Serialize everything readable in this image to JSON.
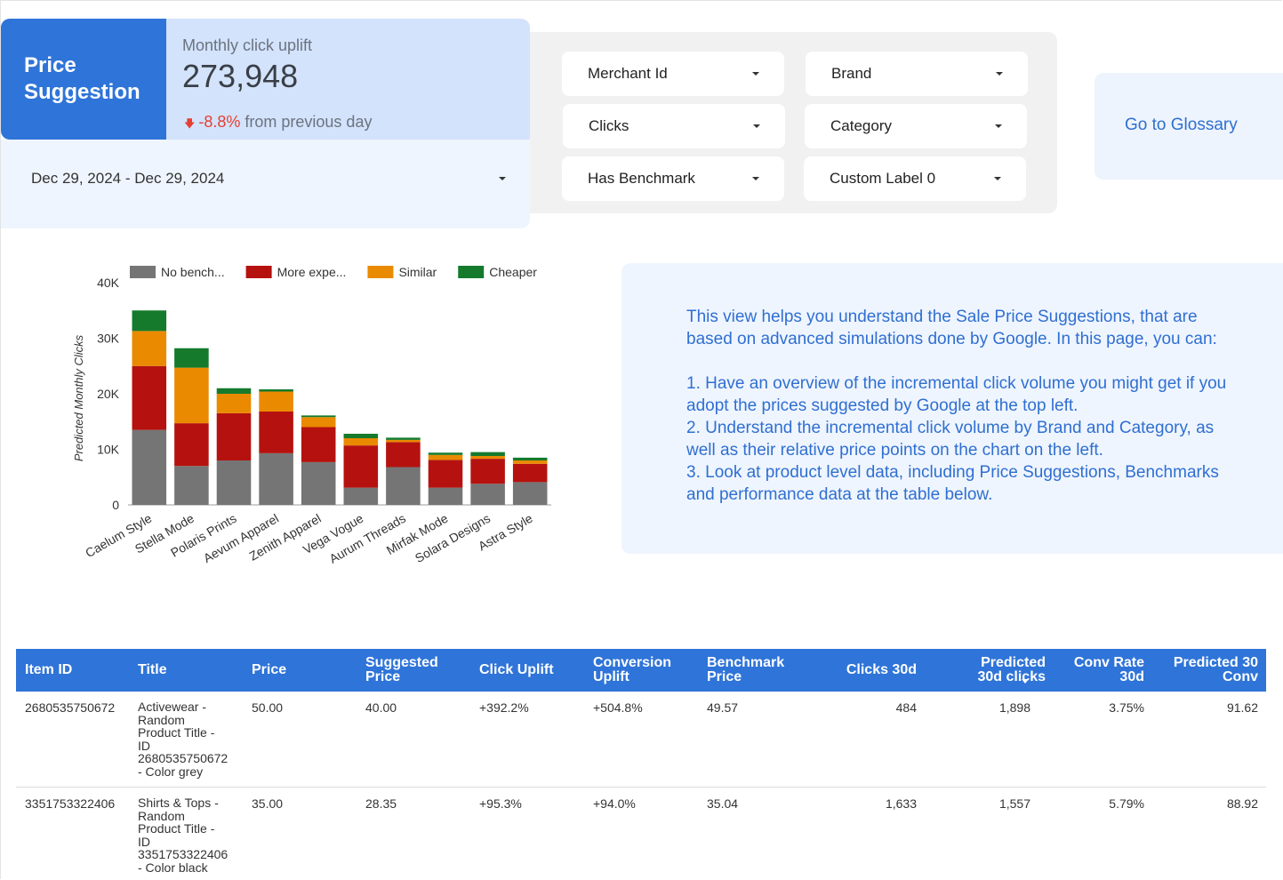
{
  "header": {
    "title": "Price\nSuggestion",
    "kpi_label": "Monthly click uplift",
    "kpi_value": "273,948",
    "kpi_change": "-8.8%",
    "kpi_change_suffix": "from previous day",
    "kpi_arrow_icon": "down-arrow-icon"
  },
  "date_range": {
    "value": "Dec 29, 2024 - Dec 29, 2024"
  },
  "filters": [
    {
      "label": "Merchant Id"
    },
    {
      "label": "Brand"
    },
    {
      "label": "Clicks"
    },
    {
      "label": "Category"
    },
    {
      "label": "Has Benchmark"
    },
    {
      "label": "Custom Label 0"
    }
  ],
  "glossary": {
    "label": "Go to Glossary"
  },
  "chart_data": {
    "type": "bar",
    "stacked": true,
    "title": "",
    "ylabel": "Predicted Monthly Clicks",
    "xlabel": "",
    "ylim": [
      0,
      40000
    ],
    "yticks": [
      "0",
      "10K",
      "20K",
      "30K",
      "40K"
    ],
    "legend_position": "top",
    "categories": [
      "Caelum Style",
      "Stella Mode",
      "Polaris Prints",
      "Aevum Apparel",
      "Zenith Apparel",
      "Vega Vogue",
      "Aurum Threads",
      "Mirfak Mode",
      "Solara Designs",
      "Astra Style"
    ],
    "series": [
      {
        "name": "No bench...",
        "color": "#757575",
        "values": [
          13500,
          7000,
          8000,
          9300,
          7700,
          3100,
          6800,
          3100,
          3800,
          4100
        ]
      },
      {
        "name": "More expe...",
        "color": "#b5120f",
        "values": [
          11500,
          7700,
          8500,
          7500,
          6300,
          7600,
          4500,
          5000,
          4500,
          3300
        ]
      },
      {
        "name": "Similar",
        "color": "#ea8a00",
        "values": [
          6300,
          10000,
          3500,
          3600,
          1800,
          1300,
          400,
          900,
          500,
          600
        ]
      },
      {
        "name": "Cheaper",
        "color": "#157a2c",
        "values": [
          3700,
          3500,
          1000,
          400,
          300,
          800,
          400,
          400,
          700,
          500
        ]
      }
    ]
  },
  "info": {
    "para1": "This view helps you understand the Sale Price Suggestions, that are based on advanced simulations done by Google. In this page, you can:",
    "para2": "1. Have an overview of the incremental click volume you might get if you adopt the prices suggested by Google at the top left.\n2. Understand the incremental click volume by Brand and Category, as well as their relative price points on the chart on the left.\n3. Look at product level data, including Price Suggestions, Benchmarks and performance data at the table below."
  },
  "table": {
    "columns": {
      "item_id": "Item ID",
      "title": "Title",
      "price": "Price",
      "suggested_price": "Suggested\nPrice",
      "click_uplift": "Click Uplift",
      "conversion_uplift": "Conversion\nUplift",
      "benchmark_price": "Benchmark\nPrice",
      "clicks_30d": "Clicks 30d",
      "predicted_30d_clicks": "Predicted\n30d clicks",
      "conv_rate_30d": "Conv Rate\n30d",
      "predicted_30_conv": "Predicted 30\nConv"
    },
    "sort_icon": "sort-desc-icon",
    "rows": [
      {
        "item_id": "2680535750672",
        "title": "Activewear -\nRandom\nProduct Title -\nID\n2680535750672\n- Color grey",
        "price": "50.00",
        "suggested_price": "40.00",
        "click_uplift": "+392.2%",
        "conversion_uplift": "+504.8%",
        "benchmark_price": "49.57",
        "clicks_30d": "484",
        "predicted_30d_clicks": "1,898",
        "conv_rate_30d": "3.75%",
        "predicted_30_conv": "91.62"
      },
      {
        "item_id": "3351753322406",
        "title": "Shirts & Tops -\nRandom\nProduct Title -\nID\n3351753322406\n- Color black",
        "price": "35.00",
        "suggested_price": "28.35",
        "click_uplift": "+95.3%",
        "conversion_uplift": "+94.0%",
        "benchmark_price": "35.04",
        "clicks_30d": "1,633",
        "predicted_30d_clicks": "1,557",
        "conv_rate_30d": "5.79%",
        "predicted_30_conv": "88.92"
      }
    ]
  }
}
